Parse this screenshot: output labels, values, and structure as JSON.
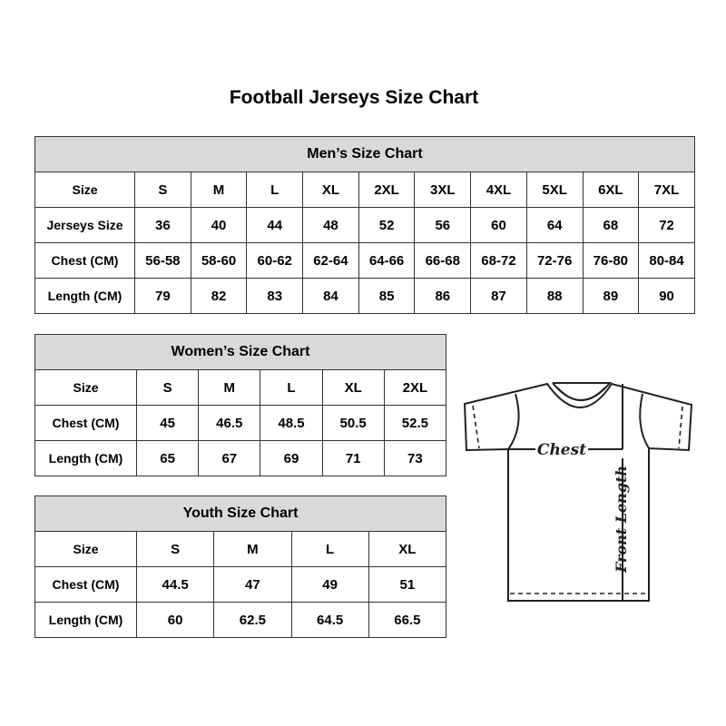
{
  "title": "Football Jerseys Size Chart",
  "tables": {
    "men": {
      "heading": "Men’s Size Chart",
      "rows": [
        [
          "Size",
          "S",
          "M",
          "L",
          "XL",
          "2XL",
          "3XL",
          "4XL",
          "5XL",
          "6XL",
          "7XL"
        ],
        [
          "Jerseys Size",
          "36",
          "40",
          "44",
          "48",
          "52",
          "56",
          "60",
          "64",
          "68",
          "72"
        ],
        [
          "Chest (CM)",
          "56-58",
          "58-60",
          "60-62",
          "62-64",
          "64-66",
          "66-68",
          "68-72",
          "72-76",
          "76-80",
          "80-84"
        ],
        [
          "Length (CM)",
          "79",
          "82",
          "83",
          "84",
          "85",
          "86",
          "87",
          "88",
          "89",
          "90"
        ]
      ]
    },
    "women": {
      "heading": "Women’s Size Chart",
      "rows": [
        [
          "Size",
          "S",
          "M",
          "L",
          "XL",
          "2XL"
        ],
        [
          "Chest (CM)",
          "45",
          "46.5",
          "48.5",
          "50.5",
          "52.5"
        ],
        [
          "Length (CM)",
          "65",
          "67",
          "69",
          "71",
          "73"
        ]
      ]
    },
    "youth": {
      "heading": "Youth Size Chart",
      "rows": [
        [
          "Size",
          "S",
          "M",
          "L",
          "XL"
        ],
        [
          "Chest (CM)",
          "44.5",
          "47",
          "49",
          "51"
        ],
        [
          "Length (CM)",
          "60",
          "62.5",
          "64.5",
          "66.5"
        ]
      ]
    }
  },
  "diagram": {
    "chest_label": "Chest",
    "length_label": "Front Length"
  }
}
